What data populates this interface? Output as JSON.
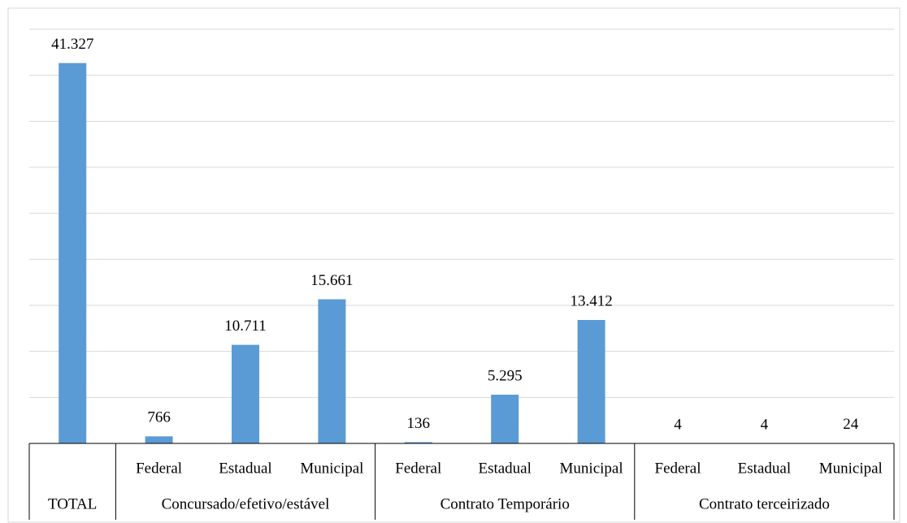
{
  "chart_data": {
    "type": "bar",
    "color": "#5b9bd5",
    "grid": true,
    "ylim": [
      0,
      45000
    ],
    "yticks": [
      0,
      5000,
      10000,
      15000,
      20000,
      25000,
      30000,
      35000,
      40000,
      45000
    ],
    "groups": [
      {
        "name": "TOTAL",
        "categories": [
          null
        ],
        "values": [
          41327
        ],
        "value_labels": [
          "41.327"
        ]
      },
      {
        "name": "Concursado/efetivo/estável",
        "categories": [
          "Federal",
          "Estadual",
          "Municipal"
        ],
        "values": [
          766,
          10711,
          15661
        ],
        "value_labels": [
          "766",
          "10.711",
          "15.661"
        ]
      },
      {
        "name": "Contrato Temporário",
        "categories": [
          "Federal",
          "Estadual",
          "Municipal"
        ],
        "values": [
          136,
          5295,
          13412
        ],
        "value_labels": [
          "136",
          "5.295",
          "13.412"
        ]
      },
      {
        "name": "Contrato terceirizado",
        "categories": [
          "Federal",
          "Estadual",
          "Municipal"
        ],
        "values": [
          4,
          4,
          24
        ],
        "value_labels": [
          "4",
          "4",
          "24"
        ]
      }
    ]
  }
}
